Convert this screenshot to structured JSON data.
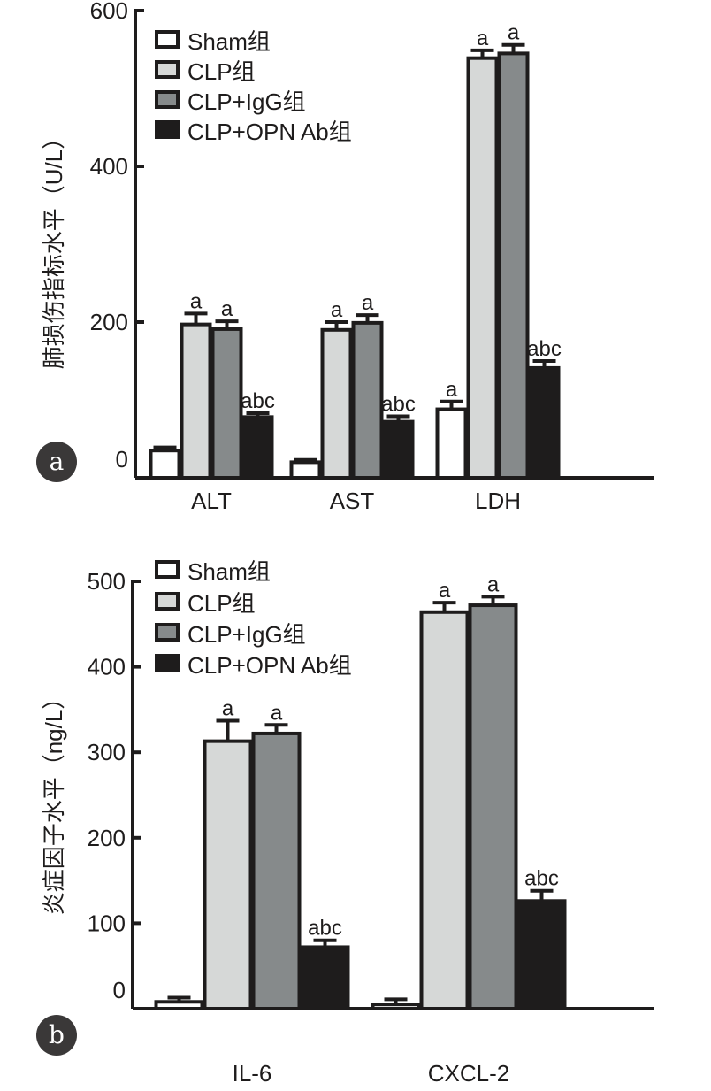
{
  "chart_data": [
    {
      "type": "bar",
      "panel_label": "a",
      "ylabel": "肺损伤指标水平（U/L）",
      "ylim": [
        0,
        600
      ],
      "yticks": [
        0,
        200,
        400,
        600
      ],
      "categories": [
        "ALT",
        "AST",
        "LDH"
      ],
      "series": [
        {
          "name": "Sham组",
          "color": "#ffffff",
          "values": [
            35,
            20,
            88
          ],
          "errors": [
            4,
            3,
            10
          ],
          "labels": [
            "",
            "",
            "a"
          ]
        },
        {
          "name": "CLP组",
          "color": "#d6d8d7",
          "values": [
            197,
            190,
            539
          ],
          "errors": [
            14,
            10,
            10
          ],
          "labels": [
            "a",
            "a",
            "a"
          ]
        },
        {
          "name": "CLP+IgG组",
          "color": "#868a8b",
          "values": [
            191,
            199,
            545
          ],
          "errors": [
            10,
            10,
            11
          ],
          "labels": [
            "a",
            "a",
            "a"
          ]
        },
        {
          "name": "CLP+OPN Ab组",
          "color": "#1e1c1c",
          "values": [
            78,
            72,
            141
          ],
          "errors": [
            5,
            7,
            9
          ],
          "labels": [
            "abc",
            "abc",
            "abc"
          ]
        }
      ],
      "legend": "top-left"
    },
    {
      "type": "bar",
      "panel_label": "b",
      "ylabel": "炎症因子水平（ng/L）",
      "ylim": [
        0,
        500
      ],
      "yticks": [
        0,
        100,
        200,
        300,
        400,
        500
      ],
      "categories": [
        "IL-6",
        "CXCL-2"
      ],
      "series": [
        {
          "name": "Sham组",
          "color": "#ffffff",
          "values": [
            8,
            5
          ],
          "errors": [
            5,
            6
          ],
          "labels": [
            "",
            ""
          ]
        },
        {
          "name": "CLP组",
          "color": "#d6d8d7",
          "values": [
            313,
            464
          ],
          "errors": [
            24,
            11
          ],
          "labels": [
            "a",
            "a"
          ]
        },
        {
          "name": "CLP+IgG组",
          "color": "#868a8b",
          "values": [
            322,
            472
          ],
          "errors": [
            10,
            10
          ],
          "labels": [
            "a",
            "a"
          ]
        },
        {
          "name": "CLP+OPN Ab组",
          "color": "#1e1c1c",
          "values": [
            72,
            126
          ],
          "errors": [
            8,
            12
          ],
          "labels": [
            "abc",
            "abc"
          ]
        }
      ],
      "legend": "top-left"
    }
  ]
}
